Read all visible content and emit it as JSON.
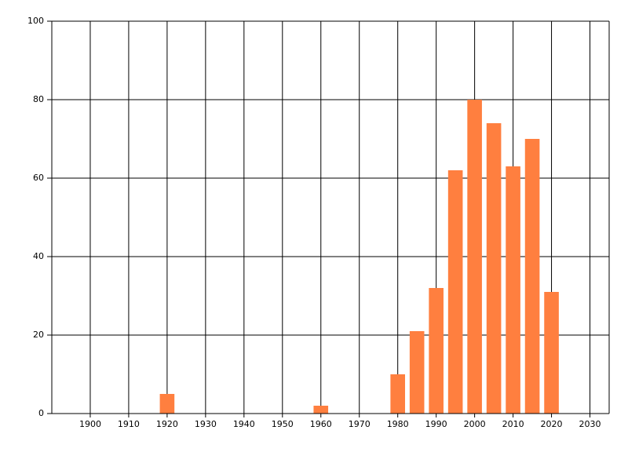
{
  "chart_data": {
    "type": "bar",
    "x": [
      1920,
      1960,
      1980,
      1985,
      1990,
      1995,
      2000,
      2005,
      2010,
      2015,
      2020
    ],
    "values": [
      5,
      2,
      10,
      21,
      32,
      62,
      80,
      74,
      63,
      70,
      31
    ],
    "color": "#ff7f3f",
    "xlim": [
      1890,
      2035
    ],
    "xticks": [
      1900,
      1910,
      1920,
      1930,
      1940,
      1950,
      1960,
      1970,
      1980,
      1990,
      2000,
      2010,
      2020,
      2030
    ],
    "ylim": [
      0,
      100
    ],
    "yticks": [
      0,
      20,
      40,
      60,
      80,
      100
    ],
    "grid": true
  }
}
